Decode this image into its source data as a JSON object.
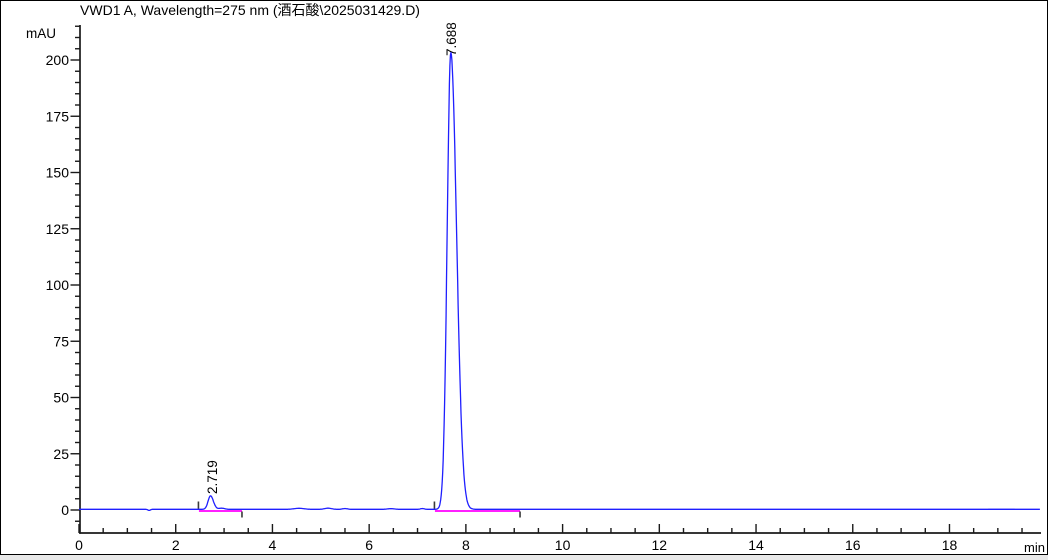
{
  "chart_data": {
    "type": "line",
    "title": "VWD1 A, Wavelength=275 nm (酒石酸\\2025031429.D)",
    "x_axis": {
      "label": "min",
      "range": [
        0,
        19.9
      ],
      "major_step": 2,
      "minor_step": 0.5,
      "tick_labels": [
        "0",
        "2",
        "4",
        "6",
        "8",
        "10",
        "12",
        "14",
        "16",
        "18"
      ]
    },
    "y_axis": {
      "label": "mAU",
      "range": [
        -10,
        215
      ],
      "major_step": 25,
      "minor_step": 5,
      "tick_labels": [
        "0",
        "25",
        "50",
        "75",
        "100",
        "125",
        "150",
        "175",
        "200"
      ]
    },
    "baseline_mau": 0.3,
    "peaks": [
      {
        "label": "2.719",
        "rt_min": 2.719,
        "height_mau": 6,
        "sigma_left": 0.05,
        "sigma_right": 0.06
      },
      {
        "label": "7.688",
        "rt_min": 7.688,
        "height_mau": 203,
        "sigma_left": 0.075,
        "sigma_right": 0.12
      }
    ],
    "integration_baselines": [
      {
        "start_min": 2.48,
        "end_min": 3.37
      },
      {
        "start_min": 7.36,
        "end_min": 9.12
      }
    ],
    "baseline_noise": [
      {
        "t": 1.45,
        "h": -0.5,
        "s": 0.025
      },
      {
        "t": 2.95,
        "h": 0.5,
        "s": 0.06
      },
      {
        "t": 4.55,
        "h": 0.45,
        "s": 0.1
      },
      {
        "t": 5.15,
        "h": 0.5,
        "s": 0.07
      },
      {
        "t": 5.5,
        "h": 0.35,
        "s": 0.05
      },
      {
        "t": 6.45,
        "h": 0.3,
        "s": 0.07
      },
      {
        "t": 7.1,
        "h": 0.35,
        "s": 0.04
      }
    ],
    "trace_artifact": {
      "start_min": 18.8,
      "end_min": 19.35
    },
    "colors": {
      "trace": "#1f1fff",
      "integration": "#ff00ff",
      "title": "#0000d8",
      "axis": "#1a1a1a",
      "artifact": "#9a9aff",
      "x_unit_label": "#8b2500"
    }
  }
}
